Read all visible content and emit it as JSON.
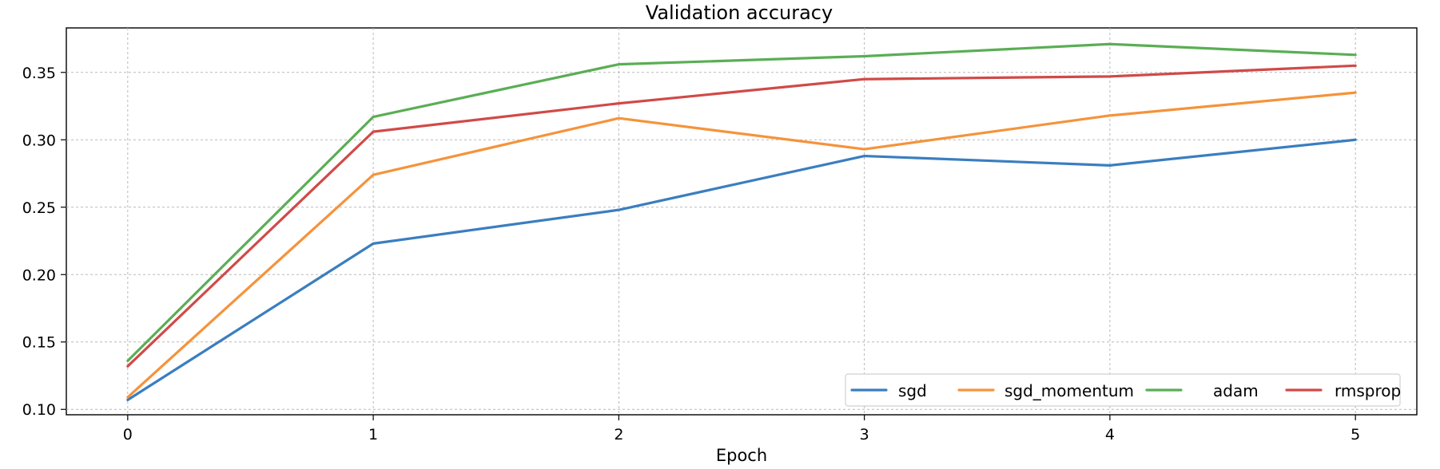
{
  "chart_data": {
    "type": "line",
    "title": "Validation accuracy",
    "xlabel": "Epoch",
    "ylabel": "",
    "x": [
      0,
      1,
      2,
      3,
      4,
      5
    ],
    "xlim": [
      -0.25,
      5.25
    ],
    "ylim": [
      0.096,
      0.383
    ],
    "x_ticks": [
      "0",
      "1",
      "2",
      "3",
      "4",
      "5"
    ],
    "y_ticks": [
      "0.10",
      "0.15",
      "0.20",
      "0.25",
      "0.30",
      "0.35"
    ],
    "grid": true,
    "legend_position": "lower-right",
    "legend_columns": 4,
    "series": [
      {
        "name": "sgd",
        "color": "#3a7ebf",
        "values": [
          0.107,
          0.223,
          0.248,
          0.288,
          0.281,
          0.3
        ]
      },
      {
        "name": "sgd_momentum",
        "color": "#f5933b",
        "values": [
          0.109,
          0.274,
          0.316,
          0.293,
          0.318,
          0.335
        ]
      },
      {
        "name": "adam",
        "color": "#5aae54",
        "values": [
          0.136,
          0.317,
          0.356,
          0.362,
          0.371,
          0.363
        ]
      },
      {
        "name": "rmsprop",
        "color": "#d04a48",
        "values": [
          0.132,
          0.306,
          0.327,
          0.345,
          0.347,
          0.355
        ]
      }
    ]
  }
}
